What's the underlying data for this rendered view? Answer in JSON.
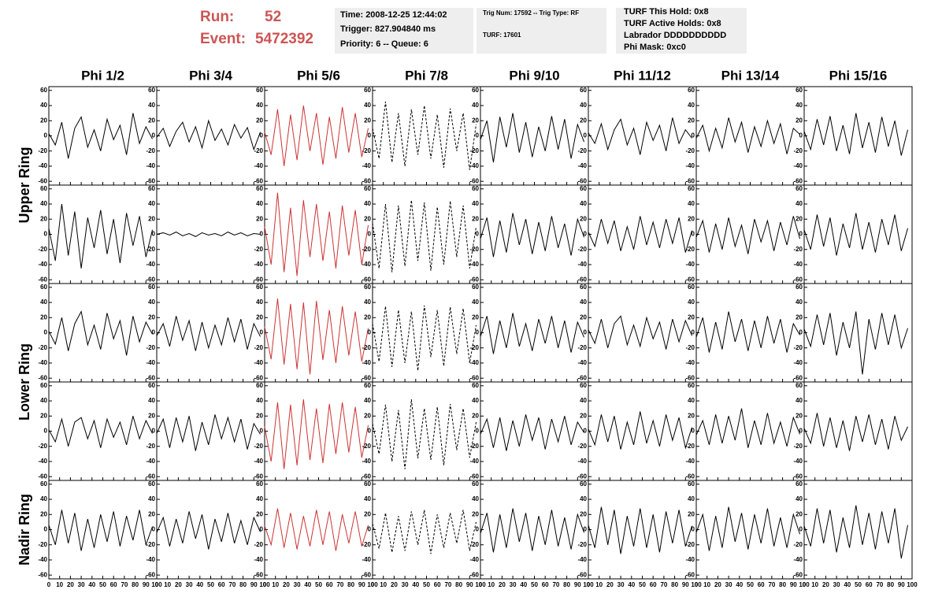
{
  "header": {
    "run_label": "Run:",
    "run": 52,
    "event_label": "Event:",
    "event": 5472392,
    "info1": [
      "Time: 2008-12-25 12:44:02",
      "Trigger: 827.904840 ms",
      "Priority: 6 -- Queue: 6"
    ],
    "info2": [
      "Trig Num: 17592 -- Trig Type: RF",
      "TURF: 17601"
    ],
    "info3": [
      "TURF This Hold: 0x8",
      "TURF Active Holds: 0x8",
      "Labrador DDDDDDDDDD",
      "Phi Mask: 0xc0"
    ]
  },
  "chart_data": {
    "type": "line",
    "columns": [
      {
        "name": "Phi 1/2",
        "color": "#000000"
      },
      {
        "name": "Phi 3/4",
        "color": "#000000"
      },
      {
        "name": "Phi 5/6",
        "color": "#cc3333"
      },
      {
        "name": "Phi 7/8",
        "color": "#000000",
        "dashed": true
      },
      {
        "name": "Phi 9/10",
        "color": "#000000"
      },
      {
        "name": "Phi 11/12",
        "color": "#000000"
      },
      {
        "name": "Phi 13/14",
        "color": "#000000"
      },
      {
        "name": "Phi 15/16",
        "color": "#000000"
      }
    ],
    "ring_labels": [
      "Upper Ring",
      "Lower Ring",
      "Nadir Ring"
    ],
    "xlim": [
      0,
      100
    ],
    "xticks": [
      0,
      10,
      20,
      30,
      40,
      50,
      60,
      70,
      80,
      90,
      100
    ],
    "ylim": [
      -65,
      65
    ],
    "yticks": [
      -60,
      -40,
      -20,
      0,
      20,
      40,
      60
    ],
    "x": [
      0,
      6,
      12,
      18,
      24,
      30,
      36,
      42,
      48,
      54,
      60,
      66,
      72,
      78,
      84,
      90,
      96
    ],
    "panels": [
      [
        [
          3,
          -12,
          18,
          -30,
          10,
          25,
          -15,
          8,
          -20,
          22,
          -5,
          14,
          -25,
          30,
          -10,
          12,
          -4
        ],
        [
          -2,
          10,
          -14,
          6,
          18,
          -8,
          12,
          -16,
          20,
          -6,
          9,
          -12,
          15,
          -3,
          11,
          -18,
          5
        ],
        [
          5,
          -25,
          35,
          -40,
          28,
          -32,
          40,
          -20,
          30,
          -38,
          25,
          -30,
          38,
          -22,
          30,
          -28,
          10
        ],
        [
          10,
          -30,
          45,
          -35,
          30,
          -40,
          35,
          -25,
          40,
          -30,
          28,
          -42,
          36,
          -20,
          30,
          -45,
          15
        ],
        [
          -5,
          20,
          -35,
          25,
          -15,
          30,
          -22,
          18,
          -28,
          12,
          -20,
          26,
          -18,
          22,
          -30,
          15,
          -8
        ],
        [
          4,
          -10,
          16,
          -18,
          8,
          22,
          -12,
          10,
          -25,
          18,
          -6,
          14,
          -20,
          24,
          -10,
          8,
          -3
        ],
        [
          -3,
          14,
          -20,
          10,
          -16,
          24,
          -8,
          18,
          -22,
          12,
          -14,
          20,
          -10,
          16,
          -24,
          10,
          2
        ],
        [
          6,
          -18,
          22,
          -12,
          26,
          -20,
          14,
          -24,
          30,
          -16,
          18,
          -22,
          25,
          -14,
          20,
          -26,
          8
        ]
      ],
      [
        [
          8,
          -35,
          40,
          -28,
          30,
          -45,
          22,
          -18,
          32,
          -26,
          20,
          -38,
          28,
          -15,
          24,
          -30,
          6
        ],
        [
          0,
          2,
          -1,
          3,
          -2,
          1,
          -3,
          2,
          -1,
          1,
          -2,
          3,
          -1,
          2,
          -2,
          1,
          0
        ],
        [
          10,
          -40,
          55,
          -50,
          35,
          -55,
          45,
          -30,
          40,
          -35,
          30,
          -45,
          38,
          -28,
          32,
          -40,
          12
        ],
        [
          15,
          -45,
          40,
          -50,
          38,
          -42,
          45,
          -35,
          42,
          -48,
          36,
          -40,
          44,
          -30,
          38,
          -45,
          10
        ],
        [
          -6,
          22,
          -30,
          18,
          -24,
          28,
          -14,
          20,
          -26,
          16,
          -22,
          24,
          -18,
          14,
          -28,
          20,
          -4
        ],
        [
          3,
          -16,
          20,
          -12,
          18,
          -22,
          10,
          -20,
          24,
          -14,
          16,
          -18,
          20,
          -12,
          22,
          -24,
          5
        ],
        [
          -4,
          18,
          -24,
          14,
          -20,
          22,
          -16,
          12,
          -26,
          20,
          -10,
          18,
          -22,
          16,
          -14,
          24,
          -6
        ],
        [
          6,
          -20,
          26,
          -16,
          22,
          -28,
          14,
          -18,
          28,
          -20,
          16,
          -24,
          20,
          -14,
          26,
          -22,
          8
        ]
      ],
      [
        [
          2,
          -15,
          20,
          -24,
          12,
          28,
          -16,
          10,
          -22,
          26,
          -8,
          16,
          -30,
          22,
          -12,
          14,
          -2
        ],
        [
          -4,
          12,
          -18,
          22,
          -10,
          16,
          -24,
          14,
          -20,
          10,
          -16,
          20,
          -12,
          18,
          -22,
          12,
          -5
        ],
        [
          8,
          -35,
          45,
          -42,
          38,
          -48,
          40,
          -55,
          42,
          -36,
          30,
          -40,
          35,
          -30,
          28,
          -38,
          6
        ],
        [
          12,
          -38,
          35,
          -45,
          30,
          -40,
          28,
          -50,
          36,
          -32,
          30,
          -44,
          34,
          -28,
          32,
          -40,
          10
        ],
        [
          -5,
          22,
          -28,
          16,
          -20,
          26,
          -18,
          12,
          -24,
          18,
          -14,
          22,
          -20,
          16,
          -26,
          14,
          -6
        ],
        [
          4,
          -14,
          18,
          -20,
          12,
          22,
          -16,
          10,
          -18,
          20,
          -8,
          14,
          -22,
          18,
          -12,
          16,
          -4
        ],
        [
          -6,
          20,
          -26,
          14,
          -22,
          28,
          -12,
          18,
          -24,
          16,
          -20,
          22,
          -14,
          18,
          -26,
          12,
          -3
        ],
        [
          5,
          -18,
          24,
          -16,
          26,
          -30,
          14,
          -20,
          28,
          -55,
          18,
          -22,
          26,
          -16,
          24,
          -20,
          6
        ]
      ],
      [
        [
          2,
          -14,
          16,
          -20,
          12,
          18,
          -10,
          14,
          -22,
          16,
          -8,
          12,
          -18,
          20,
          -10,
          14,
          -3
        ],
        [
          -3,
          16,
          -22,
          18,
          -14,
          20,
          -26,
          12,
          -18,
          22,
          -10,
          18,
          -14,
          16,
          -24,
          10,
          -4
        ],
        [
          6,
          -40,
          38,
          -50,
          35,
          -45,
          42,
          -38,
          30,
          -42,
          36,
          -30,
          38,
          -28,
          32,
          -35,
          8
        ],
        [
          10,
          -30,
          35,
          -40,
          28,
          -50,
          42,
          -36,
          30,
          -38,
          32,
          -45,
          36,
          -25,
          30,
          -35,
          12
        ],
        [
          -4,
          16,
          -22,
          18,
          -26,
          14,
          -20,
          22,
          -12,
          18,
          -24,
          16,
          -14,
          20,
          -18,
          12,
          -2
        ],
        [
          3,
          -18,
          22,
          -14,
          20,
          -24,
          12,
          -18,
          26,
          -16,
          14,
          -20,
          22,
          -12,
          18,
          -22,
          5
        ],
        [
          -5,
          14,
          -18,
          22,
          -16,
          20,
          -12,
          30,
          -22,
          14,
          -18,
          24,
          -16,
          12,
          -20,
          18,
          -4
        ],
        [
          4,
          -16,
          24,
          -20,
          18,
          -22,
          14,
          -26,
          20,
          -14,
          22,
          -18,
          16,
          -24,
          20,
          -12,
          6
        ]
      ],
      [
        [
          6,
          -20,
          26,
          -18,
          22,
          -28,
          14,
          -24,
          20,
          -16,
          24,
          -22,
          18,
          -14,
          26,
          -20,
          4
        ],
        [
          -4,
          16,
          -22,
          14,
          -18,
          24,
          -12,
          20,
          -26,
          14,
          -16,
          22,
          -18,
          12,
          -20,
          16,
          -3
        ],
        [
          5,
          -20,
          28,
          -24,
          22,
          -26,
          18,
          -22,
          26,
          -20,
          24,
          -28,
          20,
          -18,
          24,
          -22,
          6
        ],
        [
          8,
          -25,
          22,
          -30,
          18,
          -28,
          24,
          -20,
          26,
          -32,
          20,
          -24,
          22,
          -18,
          26,
          -28,
          10
        ],
        [
          -5,
          22,
          -30,
          20,
          -24,
          28,
          -16,
          22,
          -28,
          18,
          -20,
          26,
          -22,
          16,
          -26,
          20,
          -4
        ],
        [
          6,
          -24,
          30,
          -20,
          26,
          -32,
          18,
          -22,
          28,
          -24,
          20,
          -30,
          24,
          -18,
          26,
          -22,
          5
        ],
        [
          -4,
          20,
          -28,
          18,
          -24,
          30,
          -16,
          22,
          -26,
          20,
          -18,
          28,
          -22,
          16,
          -24,
          20,
          -6
        ],
        [
          5,
          -22,
          28,
          -18,
          26,
          -30,
          16,
          -24,
          32,
          -20,
          22,
          -26,
          24,
          -18,
          28,
          -38,
          6
        ]
      ]
    ]
  }
}
